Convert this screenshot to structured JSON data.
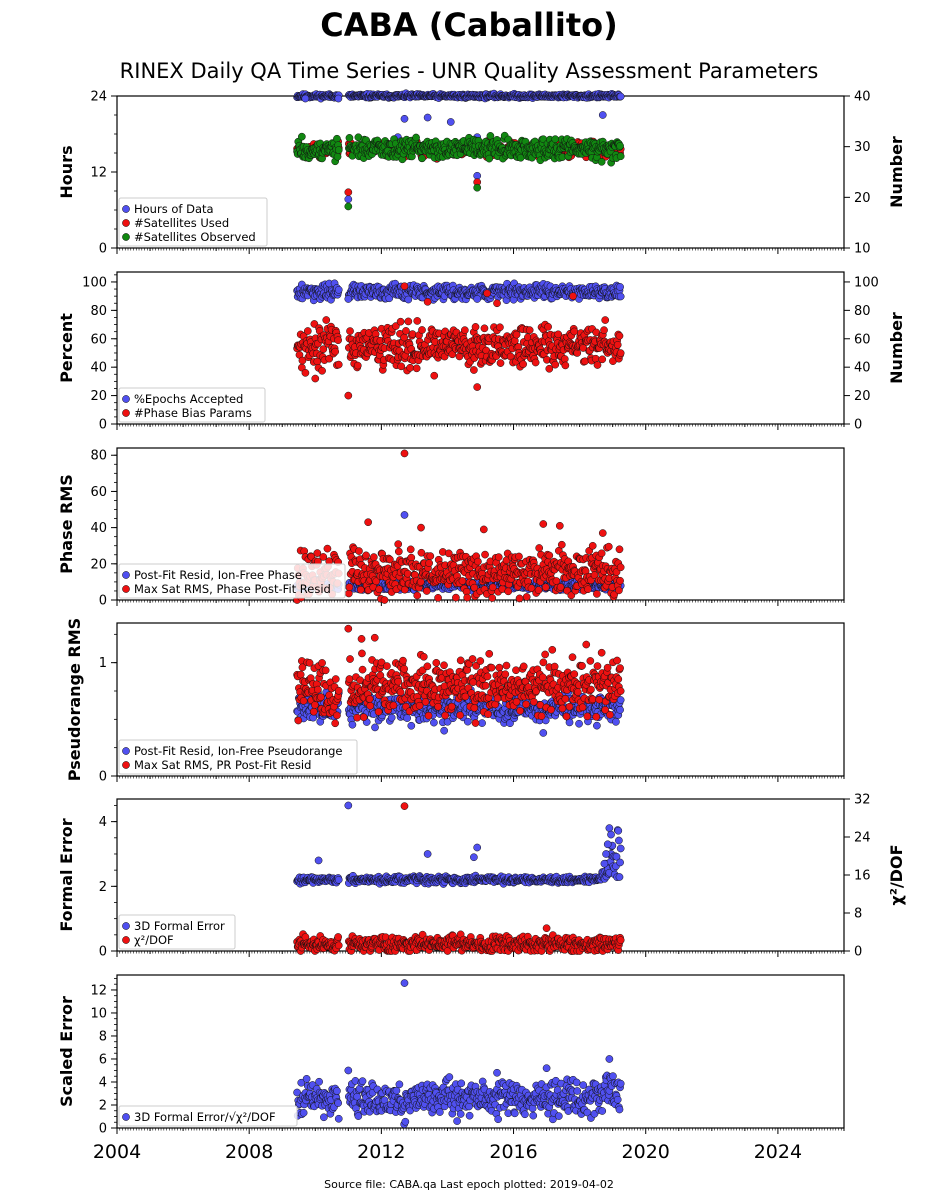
{
  "page": {
    "title": "CABA (Caballito)",
    "subtitle": "RINEX Daily QA Time Series - UNR Quality Assessment Parameters",
    "footer": "Source file: CABA.qa Last epoch plotted: 2019-04-02"
  },
  "colors": {
    "blue": "#5050f0",
    "red": "#ee1111",
    "green": "#118811",
    "axis": "#000000"
  },
  "chart_data": [
    {
      "id": "p1",
      "type": "scatter",
      "ylabel": "Hours",
      "ylabel_right": "Number",
      "ylim": [
        0,
        24
      ],
      "yticks": [
        0,
        12,
        24
      ],
      "ylim_right": [
        10,
        40
      ],
      "yticks_right": [
        10,
        20,
        30,
        40
      ],
      "series": [
        {
          "name": "Hours of Data",
          "color": "blue",
          "axis": "left",
          "base": 24.0,
          "noise": 0.15,
          "outliers": [
            [
              2009.7,
              23.6
            ],
            [
              2010.7,
              23.6
            ],
            [
              2011.0,
              7.7
            ],
            [
              2012.5,
              17.5
            ],
            [
              2012.7,
              20.4
            ],
            [
              2013.4,
              20.6
            ],
            [
              2014.1,
              19.9
            ],
            [
              2014.9,
              17.5
            ],
            [
              2014.9,
              11.4
            ],
            [
              2018.7,
              21.0
            ]
          ]
        },
        {
          "name": "#Satellites Used",
          "color": "red",
          "axis": "right",
          "base": 29.5,
          "noise": 0.7,
          "outliers": [
            [
              2011.0,
              21.0
            ],
            [
              2014.9,
              23.0
            ]
          ]
        },
        {
          "name": "#Satellites Observed",
          "color": "green",
          "axis": "right",
          "base": 29.5,
          "noise": 1.0,
          "outliers": [
            [
              2011.0,
              18.2
            ],
            [
              2014.9,
              21.9
            ]
          ]
        }
      ]
    },
    {
      "id": "p2",
      "type": "scatter",
      "ylabel": "Percent",
      "ylabel_right": "Number",
      "ylim": [
        0,
        107
      ],
      "yticks": [
        0,
        20,
        40,
        60,
        80,
        100
      ],
      "ylim_right": [
        0,
        107
      ],
      "yticks_right": [
        0,
        20,
        40,
        60,
        80,
        100
      ],
      "series": [
        {
          "name": "%Epochs Accepted",
          "color": "blue",
          "axis": "left",
          "base": 93,
          "noise": 2.5,
          "outliers": [
            [
              2011.0,
              88
            ],
            [
              2014.9,
              88
            ]
          ]
        },
        {
          "name": "#Phase Bias Params",
          "color": "red",
          "axis": "right",
          "base": 55,
          "noise": 7,
          "outliers": [
            [
              2010.0,
              32
            ],
            [
              2011.0,
              20
            ],
            [
              2012.7,
              97
            ],
            [
              2013.4,
              86
            ],
            [
              2013.6,
              34
            ],
            [
              2014.9,
              26
            ],
            [
              2014.8,
              38
            ],
            [
              2015.2,
              92
            ],
            [
              2015.5,
              85
            ],
            [
              2017.8,
              90
            ]
          ]
        }
      ]
    },
    {
      "id": "p3",
      "type": "scatter",
      "ylabel": "Phase RMS",
      "ylim": [
        0,
        84
      ],
      "yticks": [
        0,
        20,
        40,
        60,
        80
      ],
      "series": [
        {
          "name": "Post-Fit Resid, Ion-Free Phase",
          "color": "blue",
          "axis": "left",
          "base": 8,
          "noise": 1.2,
          "outliers": [
            [
              2012.7,
              47
            ]
          ]
        },
        {
          "name": "Max Sat RMS, Phase Post-Fit Resid",
          "color": "red",
          "axis": "left",
          "base": 15,
          "noise": 6,
          "outliers": [
            [
              2012.7,
              81
            ],
            [
              2011.6,
              43
            ],
            [
              2013.2,
              40
            ],
            [
              2015.1,
              39
            ],
            [
              2016.9,
              42
            ],
            [
              2017.4,
              41
            ],
            [
              2018.7,
              37
            ]
          ]
        }
      ]
    },
    {
      "id": "p4",
      "type": "scatter",
      "ylabel": "Pseudorange RMS",
      "ylim": [
        0,
        1.35
      ],
      "yticks": [
        0,
        1
      ],
      "series": [
        {
          "name": "Post-Fit Resid, Ion-Free Pseudorange",
          "color": "blue",
          "axis": "left",
          "base": 0.6,
          "noise": 0.06,
          "outliers": [
            [
              2016.9,
              0.38
            ],
            [
              2013.9,
              0.4
            ]
          ]
        },
        {
          "name": "Max Sat RMS, PR Post-Fit Resid",
          "color": "red",
          "axis": "left",
          "base": 0.78,
          "noise": 0.12,
          "outliers": [
            [
              2011.0,
              1.3
            ],
            [
              2011.4,
              1.21
            ],
            [
              2011.8,
              1.22
            ],
            [
              2018.2,
              1.16
            ]
          ]
        }
      ]
    },
    {
      "id": "p5",
      "type": "scatter",
      "ylabel": "Formal Error",
      "ylabel_right": "χ²/DOF",
      "ylim": [
        0,
        4.7
      ],
      "yticks": [
        0,
        2,
        4
      ],
      "ylim_right": [
        0,
        32
      ],
      "yticks_right": [
        0,
        8,
        16,
        24,
        32
      ],
      "series": [
        {
          "name": "3D Formal Error",
          "color": "blue",
          "axis": "left",
          "base": 2.2,
          "noise": 0.05,
          "outliers": [
            [
              2011.0,
              4.5
            ],
            [
              2010.1,
              2.8
            ],
            [
              2013.4,
              3.0
            ],
            [
              2014.9,
              3.2
            ],
            [
              2014.8,
              2.9
            ],
            [
              2018.9,
              3.8
            ],
            [
              2018.95,
              3.6
            ],
            [
              2018.85,
              3.3
            ],
            [
              2018.8,
              3.0
            ],
            [
              2018.75,
              2.7
            ]
          ]
        },
        {
          "name": "χ²/DOF",
          "color": "red",
          "axis": "right",
          "base": 1.5,
          "noise": 0.8,
          "outliers": [
            [
              2012.7,
              30.5
            ],
            [
              2017.0,
              4.8
            ]
          ]
        }
      ]
    },
    {
      "id": "p6",
      "type": "scatter",
      "ylabel": "Scaled Error",
      "ylim": [
        0,
        13.3
      ],
      "yticks": [
        0,
        2,
        4,
        6,
        8,
        10,
        12
      ],
      "xlim": [
        2004,
        2026
      ],
      "xticks": [
        2004,
        2008,
        2012,
        2016,
        2020,
        2024
      ],
      "series": [
        {
          "name": "3D Formal Error/√χ²/DOF",
          "color": "blue",
          "axis": "left",
          "base": 2.5,
          "noise": 0.8,
          "outliers": [
            [
              2012.7,
              12.6
            ],
            [
              2018.9,
              6.0
            ],
            [
              2011.0,
              5.0
            ],
            [
              2017.0,
              5.2
            ],
            [
              2015.5,
              4.8
            ]
          ]
        }
      ]
    }
  ]
}
